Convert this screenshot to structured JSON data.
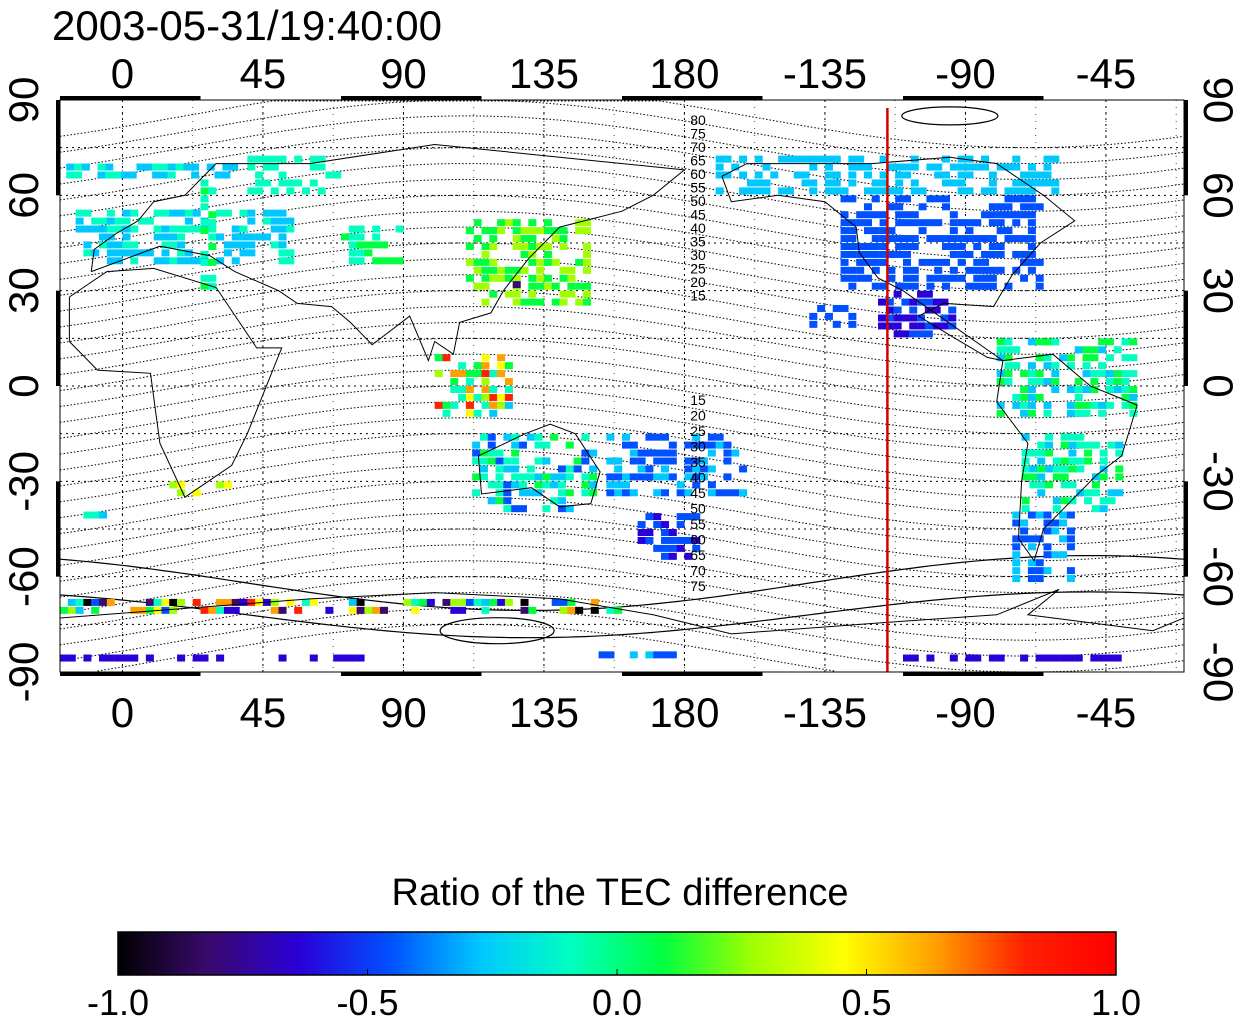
{
  "map": {
    "timestamp": "2003-05-31/19:40:00",
    "lon_labels_top": [
      "0",
      "45",
      "90",
      "135",
      "180",
      "-135",
      "-90",
      "-45"
    ],
    "lon_labels_bottom": [
      "0",
      "45",
      "90",
      "135",
      "180",
      "-135",
      "-90",
      "-45"
    ],
    "lat_labels_left": [
      "90",
      "60",
      "30",
      "0",
      "-30",
      "-60",
      "-90"
    ],
    "lat_labels_right": [
      "90",
      "60",
      "30",
      "0",
      "-30",
      "-60",
      "-90"
    ],
    "lon_ticks_deg": [
      0,
      45,
      90,
      135,
      180,
      225,
      270,
      315
    ],
    "lat_ticks_deg": [
      90,
      60,
      30,
      0,
      -30,
      -60,
      -90
    ],
    "lon_range": [
      -20,
      340
    ],
    "lat_range": [
      -90,
      90
    ],
    "terminator_longitude": -115,
    "terminator_color": "#d40000",
    "contour_labels_north": [
      "80",
      "75",
      "70",
      "65",
      "60",
      "55",
      "50",
      "45",
      "40",
      "35",
      "30",
      "25",
      "20",
      "15"
    ],
    "contour_labels_south": [
      "15",
      "20",
      "25",
      "30",
      "35",
      "40",
      "45",
      "50",
      "55",
      "60",
      "65",
      "70",
      "75"
    ],
    "grid": true
  },
  "colorbar": {
    "title": "Ratio of the TEC difference",
    "tick_labels": [
      "-1.0",
      "-0.5",
      "0.0",
      "0.5",
      "1.0"
    ],
    "range": [
      -1.0,
      1.0
    ],
    "colors": [
      "#000000",
      "#3a0a6e",
      "#2a00d8",
      "#0050ff",
      "#00c8ff",
      "#00ffc0",
      "#00ff40",
      "#a0ff00",
      "#ffff00",
      "#ffa000",
      "#ff2000",
      "#ff0000"
    ]
  }
}
